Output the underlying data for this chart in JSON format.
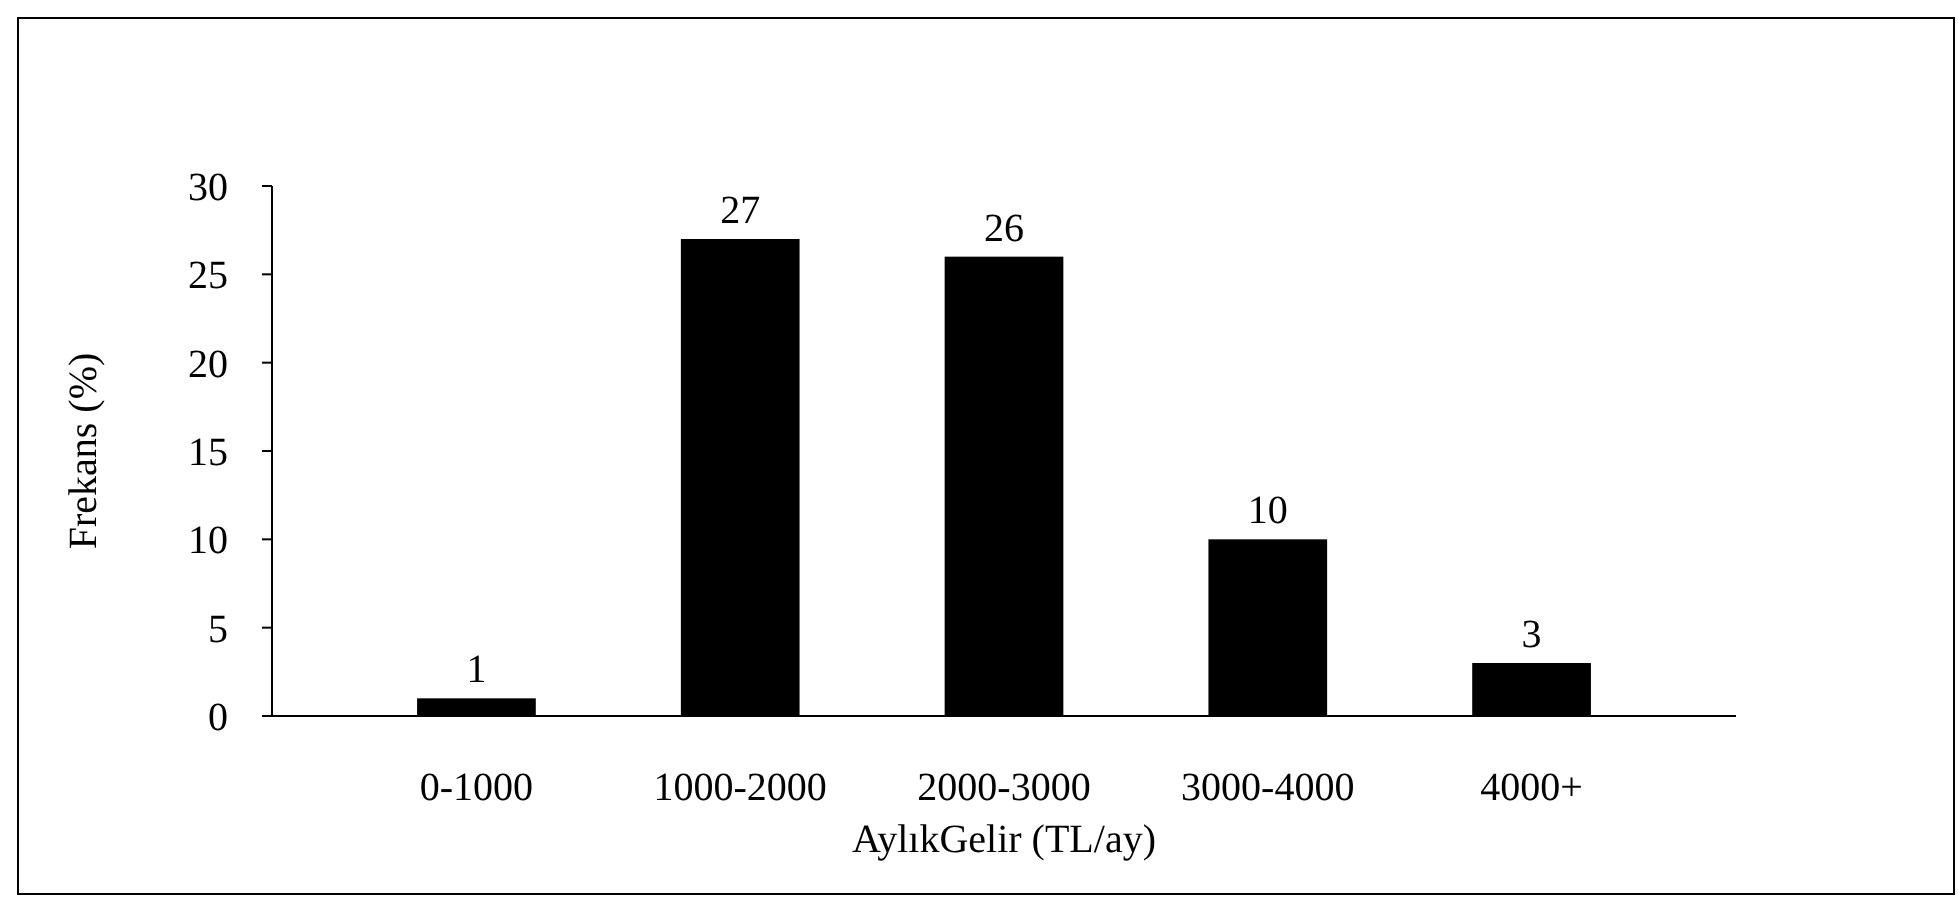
{
  "chart_data": {
    "type": "bar",
    "xlabel": "AylıkGelir (TL/ay)",
    "ylabel": "Frekans (%)",
    "categories": [
      "0-1000",
      "1000-2000",
      "2000-3000",
      "3000-4000",
      "4000+"
    ],
    "values": [
      1,
      27,
      26,
      10,
      3
    ],
    "color": "#000000",
    "ylim": [
      0,
      30
    ],
    "yticks": [
      0,
      5,
      10,
      15,
      20,
      25,
      30
    ],
    "grid": false,
    "data_labels": true
  }
}
